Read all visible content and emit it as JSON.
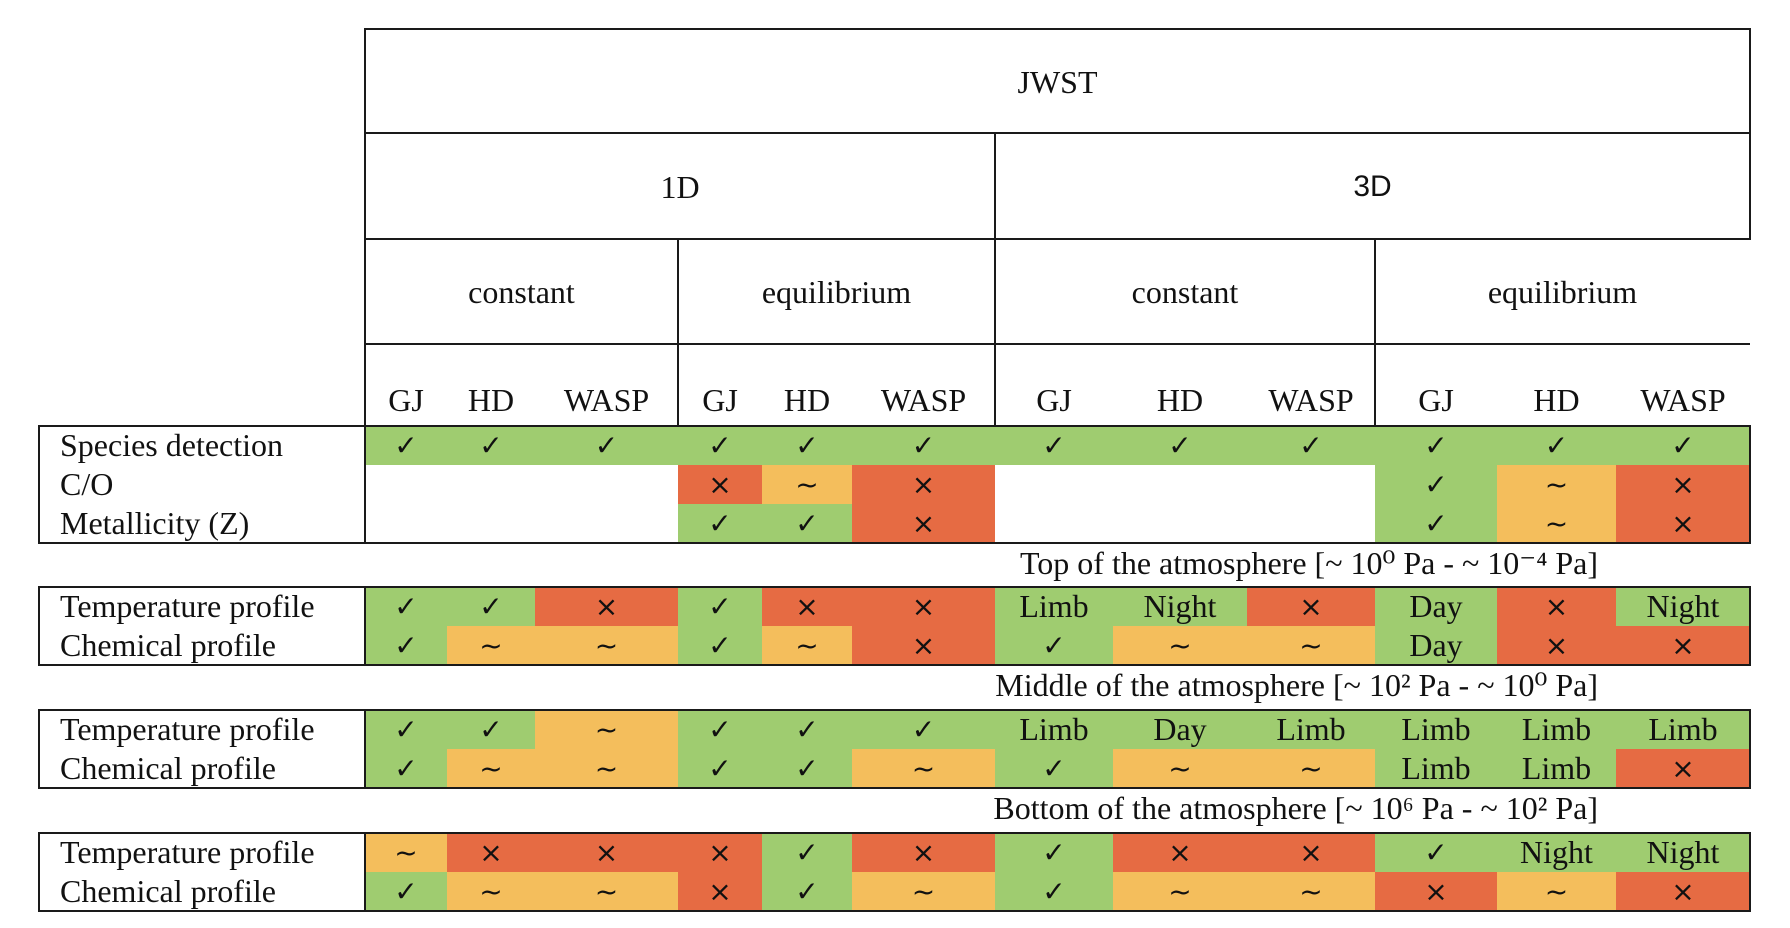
{
  "colors": {
    "yes": "#9fcc70",
    "partial": "#f4be5c",
    "no": "#e66b43",
    "none": "#ffffff"
  },
  "header": {
    "title": "JWST",
    "dims": [
      "1D",
      "3D"
    ],
    "chemistry": [
      "constant",
      "equilibrium",
      "constant",
      "equilibrium"
    ],
    "planets": [
      "GJ",
      "HD",
      "WASP",
      "GJ",
      "HD",
      "WASP",
      "GJ",
      "HD",
      "WASP",
      "GJ",
      "HD",
      "WASP"
    ]
  },
  "sections": [
    {
      "title": "",
      "rows": [
        {
          "label": "Species detection",
          "cells": [
            [
              "✓",
              "yes"
            ],
            [
              "✓",
              "yes"
            ],
            [
              "✓",
              "yes"
            ],
            [
              "✓",
              "yes"
            ],
            [
              "✓",
              "yes"
            ],
            [
              "✓",
              "yes"
            ],
            [
              "✓",
              "yes"
            ],
            [
              "✓",
              "yes"
            ],
            [
              "✓",
              "yes"
            ],
            [
              "✓",
              "yes"
            ],
            [
              "✓",
              "yes"
            ],
            [
              "✓",
              "yes"
            ]
          ]
        },
        {
          "label": "C/O",
          "cells": [
            [
              "",
              "none"
            ],
            [
              "",
              "none"
            ],
            [
              "",
              "none"
            ],
            [
              "×",
              "no"
            ],
            [
              "~",
              "partial"
            ],
            [
              "×",
              "no"
            ],
            [
              "",
              "none"
            ],
            [
              "",
              "none"
            ],
            [
              "",
              "none"
            ],
            [
              "✓",
              "yes"
            ],
            [
              "~",
              "partial"
            ],
            [
              "×",
              "no"
            ]
          ]
        },
        {
          "label": "Metallicity (Z)",
          "cells": [
            [
              "",
              "none"
            ],
            [
              "",
              "none"
            ],
            [
              "",
              "none"
            ],
            [
              "✓",
              "yes"
            ],
            [
              "✓",
              "yes"
            ],
            [
              "×",
              "no"
            ],
            [
              "",
              "none"
            ],
            [
              "",
              "none"
            ],
            [
              "",
              "none"
            ],
            [
              "✓",
              "yes"
            ],
            [
              "~",
              "partial"
            ],
            [
              "×",
              "no"
            ]
          ]
        }
      ]
    },
    {
      "title": "Top of the atmosphere [~ 10⁰ Pa - ~ 10⁻⁴ Pa]",
      "rows": [
        {
          "label": "Temperature profile",
          "cells": [
            [
              "✓",
              "yes"
            ],
            [
              "✓",
              "yes"
            ],
            [
              "×",
              "no"
            ],
            [
              "✓",
              "yes"
            ],
            [
              "×",
              "no"
            ],
            [
              "×",
              "no"
            ],
            [
              "Limb",
              "yes"
            ],
            [
              "Night",
              "yes"
            ],
            [
              "×",
              "no"
            ],
            [
              "Day",
              "yes"
            ],
            [
              "×",
              "no"
            ],
            [
              "Night",
              "yes"
            ]
          ]
        },
        {
          "label": "Chemical profile",
          "cells": [
            [
              "✓",
              "yes"
            ],
            [
              "~",
              "partial"
            ],
            [
              "~",
              "partial"
            ],
            [
              "✓",
              "yes"
            ],
            [
              "~",
              "partial"
            ],
            [
              "×",
              "no"
            ],
            [
              "✓",
              "yes"
            ],
            [
              "~",
              "partial"
            ],
            [
              "~",
              "partial"
            ],
            [
              "Day",
              "yes"
            ],
            [
              "×",
              "no"
            ],
            [
              "×",
              "no"
            ]
          ]
        }
      ]
    },
    {
      "title": "Middle of the atmosphere [~ 10² Pa - ~ 10⁰ Pa]",
      "rows": [
        {
          "label": "Temperature profile",
          "cells": [
            [
              "✓",
              "yes"
            ],
            [
              "✓",
              "yes"
            ],
            [
              "~",
              "partial"
            ],
            [
              "✓",
              "yes"
            ],
            [
              "✓",
              "yes"
            ],
            [
              "✓",
              "yes"
            ],
            [
              "Limb",
              "yes"
            ],
            [
              "Day",
              "yes"
            ],
            [
              "Limb",
              "yes"
            ],
            [
              "Limb",
              "yes"
            ],
            [
              "Limb",
              "yes"
            ],
            [
              "Limb",
              "yes"
            ]
          ]
        },
        {
          "label": "Chemical profile",
          "cells": [
            [
              "✓",
              "yes"
            ],
            [
              "~",
              "partial"
            ],
            [
              "~",
              "partial"
            ],
            [
              "✓",
              "yes"
            ],
            [
              "✓",
              "yes"
            ],
            [
              "~",
              "partial"
            ],
            [
              "✓",
              "yes"
            ],
            [
              "~",
              "partial"
            ],
            [
              "~",
              "partial"
            ],
            [
              "Limb",
              "yes"
            ],
            [
              "Limb",
              "yes"
            ],
            [
              "×",
              "no"
            ]
          ]
        }
      ]
    },
    {
      "title": "Bottom of the atmosphere [~ 10⁶ Pa - ~ 10² Pa]",
      "rows": [
        {
          "label": "Temperature profile",
          "cells": [
            [
              "~",
              "partial"
            ],
            [
              "×",
              "no"
            ],
            [
              "×",
              "no"
            ],
            [
              "×",
              "no"
            ],
            [
              "✓",
              "yes"
            ],
            [
              "×",
              "no"
            ],
            [
              "✓",
              "yes"
            ],
            [
              "×",
              "no"
            ],
            [
              "×",
              "no"
            ],
            [
              "✓",
              "yes"
            ],
            [
              "Night",
              "yes"
            ],
            [
              "Night",
              "yes"
            ]
          ]
        },
        {
          "label": "Chemical profile",
          "cells": [
            [
              "✓",
              "yes"
            ],
            [
              "~",
              "partial"
            ],
            [
              "~",
              "partial"
            ],
            [
              "×",
              "no"
            ],
            [
              "✓",
              "yes"
            ],
            [
              "~",
              "partial"
            ],
            [
              "✓",
              "yes"
            ],
            [
              "~",
              "partial"
            ],
            [
              "~",
              "partial"
            ],
            [
              "×",
              "no"
            ],
            [
              "~",
              "partial"
            ],
            [
              "×",
              "no"
            ]
          ]
        }
      ]
    }
  ]
}
